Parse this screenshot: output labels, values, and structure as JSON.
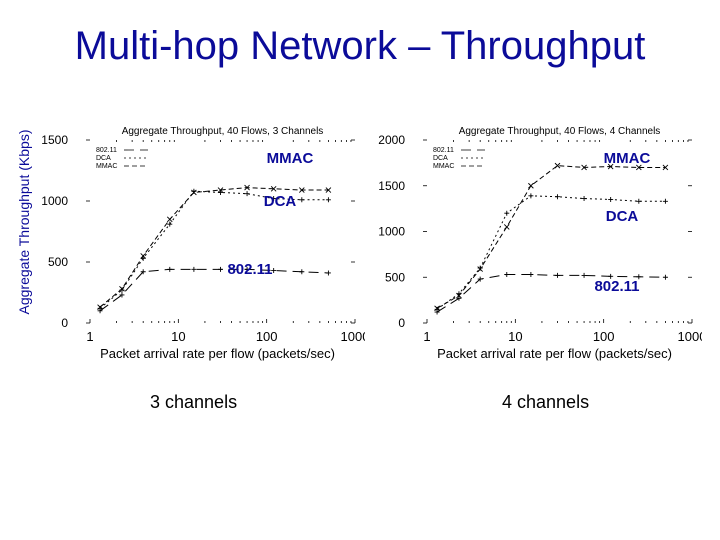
{
  "slide": {
    "title": "Multi-hop Network – Throughput",
    "ylabel": "Aggregate Throughput (Kbps)",
    "captions": [
      "3 channels",
      "4 channels"
    ]
  },
  "colors": {
    "title": "#0b0b99",
    "annotation": "#0b0b99",
    "line": "#000000"
  },
  "chart_data": [
    {
      "type": "line",
      "title": "Aggregate Throughput, 40 Flows, 3 Channels",
      "xlabel": "Packet arrival rate per flow (packets/sec)",
      "ylabel": "",
      "xscale": "log",
      "xlim": [
        1,
        1000
      ],
      "ylim": [
        0,
        1500
      ],
      "xticks": [
        1,
        10,
        100,
        1000
      ],
      "yticks": [
        0,
        500,
        1000,
        1500
      ],
      "x": [
        1.3,
        2.3,
        4,
        8,
        15,
        30,
        60,
        120,
        250,
        500
      ],
      "legend_position": "top-left",
      "series": [
        {
          "name": "802.11",
          "dash": "10,6",
          "marker": "plus",
          "values": [
            100,
            230,
            420,
            440,
            440,
            440,
            440,
            430,
            420,
            410
          ]
        },
        {
          "name": "DCA",
          "dash": "2,3",
          "marker": "plus",
          "values": [
            120,
            270,
            530,
            810,
            1080,
            1070,
            1060,
            1020,
            1010,
            1010
          ]
        },
        {
          "name": "MMAC",
          "dash": "5,3",
          "marker": "x",
          "values": [
            130,
            280,
            550,
            850,
            1070,
            1090,
            1110,
            1100,
            1090,
            1090
          ]
        }
      ],
      "annotations": [
        "MMAC",
        "DCA",
        "802.11"
      ]
    },
    {
      "type": "line",
      "title": "Aggregate Throughput, 40 Flows, 4 Channels",
      "xlabel": "Packet arrival rate per flow (packets/sec)",
      "ylabel": "",
      "xscale": "log",
      "xlim": [
        1,
        1000
      ],
      "ylim": [
        0,
        2000
      ],
      "xticks": [
        1,
        10,
        100,
        1000
      ],
      "yticks": [
        0,
        500,
        1000,
        1500,
        2000
      ],
      "x": [
        1.3,
        2.3,
        4,
        8,
        15,
        30,
        60,
        120,
        250,
        500
      ],
      "legend_position": "top-left",
      "series": [
        {
          "name": "802.11",
          "dash": "10,6",
          "marker": "plus",
          "values": [
            120,
            270,
            480,
            530,
            530,
            520,
            520,
            510,
            505,
            500
          ]
        },
        {
          "name": "DCA",
          "dash": "2,3",
          "marker": "plus",
          "values": [
            150,
            320,
            600,
            1200,
            1390,
            1380,
            1360,
            1350,
            1330,
            1330
          ]
        },
        {
          "name": "MMAC",
          "dash": "5,3",
          "marker": "x",
          "values": [
            160,
            300,
            590,
            1050,
            1500,
            1720,
            1700,
            1710,
            1700,
            1700
          ]
        }
      ],
      "annotations": [
        "MMAC",
        "DCA",
        "802.11"
      ]
    }
  ]
}
